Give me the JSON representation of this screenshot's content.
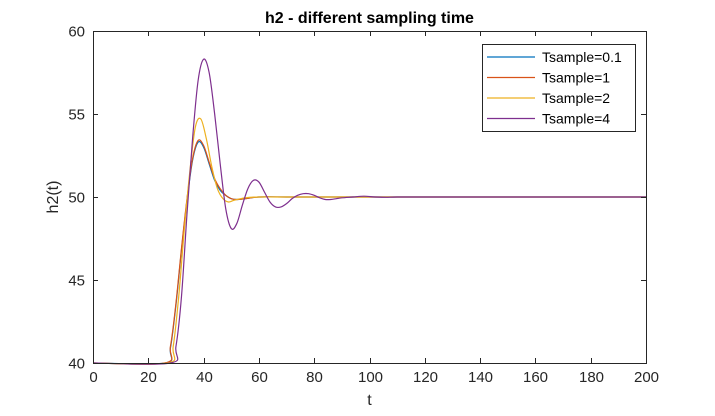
{
  "chart_data": {
    "type": "line",
    "title": "h2 - different sampling time",
    "xlabel": "t",
    "ylabel": "h2(t)",
    "xlim": [
      0,
      200
    ],
    "ylim": [
      40,
      60
    ],
    "xticks": [
      0,
      20,
      40,
      60,
      80,
      100,
      120,
      140,
      160,
      180,
      200
    ],
    "yticks": [
      40,
      45,
      50,
      55,
      60
    ],
    "grid": false,
    "legend": "top-right",
    "series": [
      {
        "name": "Tsample=0.1",
        "color": "#0072BD",
        "x": [
          0,
          26,
          28,
          30,
          32,
          34,
          36,
          38,
          40,
          42,
          44,
          46,
          48,
          50,
          52,
          55,
          60,
          70,
          80,
          100,
          150,
          200
        ],
        "y": [
          40,
          40,
          40.9,
          43.5,
          46.8,
          49.8,
          52.2,
          53.3,
          53.0,
          52.0,
          51.0,
          50.4,
          50.1,
          49.9,
          49.85,
          49.9,
          50.0,
          50.0,
          50.0,
          50.0,
          50.0,
          50.0
        ]
      },
      {
        "name": "Tsample=1",
        "color": "#D95319",
        "x": [
          0,
          26,
          28,
          30,
          32,
          34,
          36,
          38,
          40,
          42,
          44,
          46,
          48,
          50,
          52,
          55,
          60,
          70,
          80,
          100,
          150,
          200
        ],
        "y": [
          40,
          40,
          41.0,
          43.6,
          46.9,
          49.9,
          52.3,
          53.4,
          53.1,
          52.1,
          51.1,
          50.5,
          50.1,
          49.9,
          49.85,
          49.9,
          50.0,
          50.0,
          50.0,
          50.0,
          50.0,
          50.0
        ]
      },
      {
        "name": "Tsample=2",
        "color": "#EDB120",
        "x": [
          0,
          27,
          29,
          31,
          33,
          35,
          37,
          39,
          41,
          43,
          45,
          47,
          49,
          51,
          55,
          60,
          70,
          80,
          100,
          150,
          200
        ],
        "y": [
          40,
          40,
          41.0,
          44.0,
          48.0,
          51.5,
          54.2,
          54.7,
          53.5,
          51.8,
          50.5,
          49.9,
          49.7,
          49.8,
          49.95,
          50.0,
          50.0,
          50.0,
          50.0,
          50.0,
          50.0
        ]
      },
      {
        "name": "Tsample=4",
        "color": "#7E2F8E",
        "x": [
          0,
          28,
          30,
          32,
          34,
          36,
          38,
          40,
          42,
          44,
          46,
          48,
          50,
          52,
          54,
          56,
          58,
          60,
          62,
          64,
          66,
          68,
          70,
          72,
          74,
          76,
          78,
          80,
          82,
          84,
          86,
          88,
          90,
          94,
          98,
          102,
          106,
          110,
          120,
          130,
          200
        ],
        "y": [
          40,
          40,
          41.0,
          44.0,
          49.0,
          53.5,
          57.0,
          58.3,
          57.5,
          55.0,
          52.0,
          49.3,
          48.1,
          48.4,
          49.5,
          50.5,
          51.0,
          50.9,
          50.3,
          49.7,
          49.4,
          49.4,
          49.6,
          49.9,
          50.1,
          50.2,
          50.2,
          50.1,
          49.95,
          49.85,
          49.85,
          49.9,
          49.95,
          50.0,
          50.05,
          50.0,
          49.98,
          50.0,
          50.0,
          50.0,
          50.0
        ]
      }
    ]
  }
}
